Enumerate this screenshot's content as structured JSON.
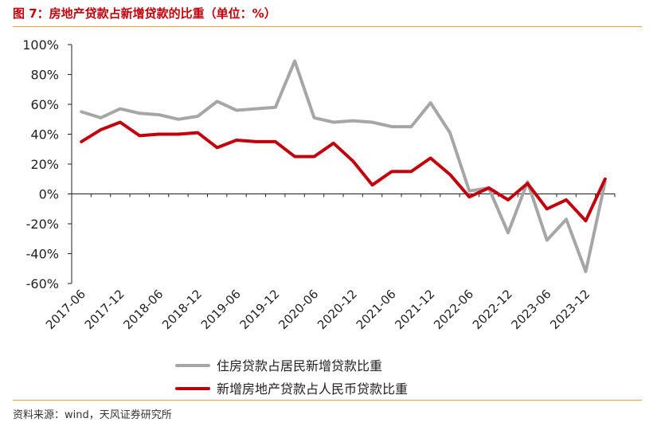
{
  "header": {
    "title": "图 7：房地产贷款占新增贷款的比重（单位：%）"
  },
  "footer": {
    "source": "资料来源：wind，天风证券研究所"
  },
  "colors": {
    "accent": "#c0000c",
    "rule": "#e5a03c",
    "series_gray": "#a6a6a6",
    "series_red": "#c0000c"
  },
  "chart_data": {
    "type": "line",
    "title": "图 7：房地产贷款占新增贷款的比重（单位：%）",
    "xlabel": "",
    "ylabel": "",
    "ylim": [
      -60,
      100
    ],
    "yticks": [
      100,
      80,
      60,
      40,
      20,
      0,
      -20,
      -40,
      -60
    ],
    "ytick_labels": [
      "100%",
      "80%",
      "60%",
      "40%",
      "20%",
      "0%",
      "-20%",
      "-40%",
      "-60%"
    ],
    "x": [
      "2017-06",
      "2017-09",
      "2017-12",
      "2018-03",
      "2018-06",
      "2018-09",
      "2018-12",
      "2019-03",
      "2019-06",
      "2019-09",
      "2019-12",
      "2020-03",
      "2020-06",
      "2020-09",
      "2020-12",
      "2021-03",
      "2021-06",
      "2021-09",
      "2021-12",
      "2022-03",
      "2022-06",
      "2022-09",
      "2022-12",
      "2023-03",
      "2023-06",
      "2023-09",
      "2023-12",
      "2024-03"
    ],
    "xtick_labels": [
      "2017-06",
      "2017-12",
      "2018-06",
      "2018-12",
      "2019-06",
      "2019-12",
      "2020-06",
      "2020-12",
      "2021-06",
      "2021-12",
      "2022-06",
      "2022-12",
      "2023-06",
      "2023-12"
    ],
    "grid": false,
    "legend_position": "bottom-center",
    "series": [
      {
        "name": "住房贷款占居民新增贷款比重",
        "color": "#a6a6a6",
        "values": [
          55,
          51,
          57,
          54,
          53,
          50,
          52,
          62,
          56,
          57,
          58,
          89,
          51,
          48,
          49,
          48,
          45,
          45,
          61,
          41,
          2,
          4,
          -26,
          8,
          -31,
          -17,
          -52,
          8
        ]
      },
      {
        "name": "新增房地产贷款占人民币贷款比重",
        "color": "#c0000c",
        "values": [
          35,
          43,
          48,
          39,
          40,
          40,
          41,
          31,
          36,
          35,
          35,
          25,
          25,
          34,
          22,
          6,
          15,
          15,
          24,
          13,
          -2,
          4,
          -4,
          7,
          -10,
          -4,
          -18,
          10
        ]
      }
    ]
  }
}
